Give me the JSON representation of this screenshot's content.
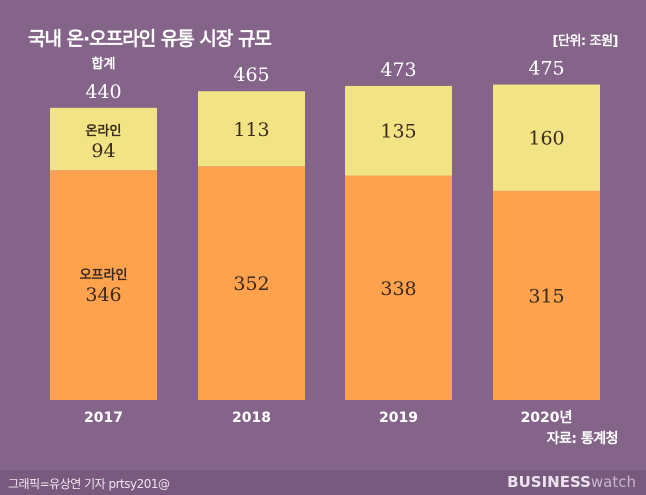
{
  "title": "국내 온·오프라인 유통 시장 규모",
  "unit": "[단위: 조원]",
  "source": "자료: 통계청",
  "credit": "그래픽=유상연 기자 prtsy201@",
  "logo": {
    "bold": "BUSINESS",
    "light": "watch"
  },
  "colors": {
    "background": "#85648a",
    "online": "#f2e485",
    "offline": "#ffa24d",
    "footer": "#775a7d"
  },
  "chart_data": {
    "type": "bar",
    "stacked": true,
    "categories": [
      "2017",
      "2018",
      "2019",
      "2020년"
    ],
    "series": [
      {
        "name": "오프라인",
        "values": [
          346,
          352,
          338,
          315
        ]
      },
      {
        "name": "온라인",
        "values": [
          94,
          113,
          135,
          160
        ]
      }
    ],
    "totals": [
      440,
      465,
      473,
      475
    ],
    "total_label": "합계",
    "grid": false
  }
}
